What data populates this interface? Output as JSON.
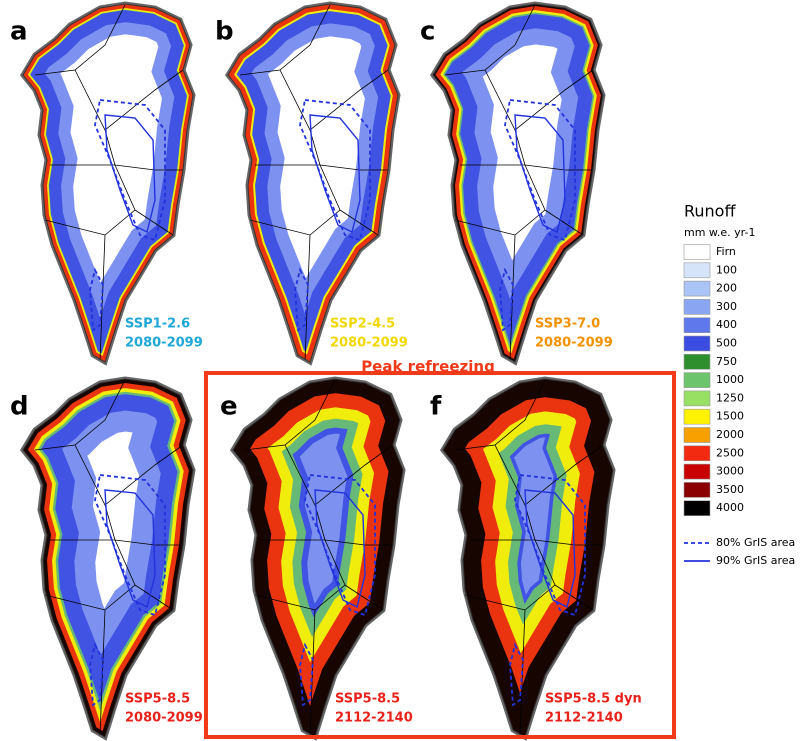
{
  "panels": [
    {
      "letter": "a",
      "scenario": "SSP1-2.6",
      "period": "2080-2099",
      "color": "#1fa7d8"
    },
    {
      "letter": "b",
      "scenario": "SSP2-4.5",
      "period": "2080-2099",
      "color": "#f2d800"
    },
    {
      "letter": "c",
      "scenario": "SSP3-7.0",
      "period": "2080-2099",
      "color": "#f39200"
    },
    {
      "letter": "d",
      "scenario": "SSP5-8.5",
      "period": "2080-2099",
      "color": "#e8221a"
    },
    {
      "letter": "e",
      "scenario": "SSP5-8.5",
      "period": "2112-2140",
      "color": "#e8221a"
    },
    {
      "letter": "f",
      "scenario": "SSP5-8.5 dyn",
      "period": "2112-2140",
      "color": "#e8221a"
    }
  ],
  "highlight": {
    "label": "Peak refreezing",
    "color": "#f03a1a"
  },
  "legend": {
    "title": "Runoff",
    "unit": "mm w.e. yr-1",
    "items": [
      {
        "label": "Firn",
        "color": "#ffffff"
      },
      {
        "label": "100",
        "color": "#d6e4fa"
      },
      {
        "label": "200",
        "color": "#a9c4f5"
      },
      {
        "label": "300",
        "color": "#8aa6f2"
      },
      {
        "label": "400",
        "color": "#5f78ec"
      },
      {
        "label": "500",
        "color": "#3a4de0"
      },
      {
        "label": "750",
        "color": "#2e8f2e"
      },
      {
        "label": "1000",
        "color": "#6cc46c"
      },
      {
        "label": "1250",
        "color": "#98e064"
      },
      {
        "label": "1500",
        "color": "#fff200"
      },
      {
        "label": "2000",
        "color": "#f7a000"
      },
      {
        "label": "2500",
        "color": "#f22a10"
      },
      {
        "label": "3000",
        "color": "#c80000"
      },
      {
        "label": "3500",
        "color": "#8b0000"
      },
      {
        "label": "4000",
        "color": "#000000"
      }
    ],
    "lines": [
      {
        "label": "80% GrIS area",
        "style": "dashed",
        "color": "#2233dd"
      },
      {
        "label": "90% GrIS area",
        "style": "solid",
        "color": "#2233dd"
      }
    ]
  }
}
